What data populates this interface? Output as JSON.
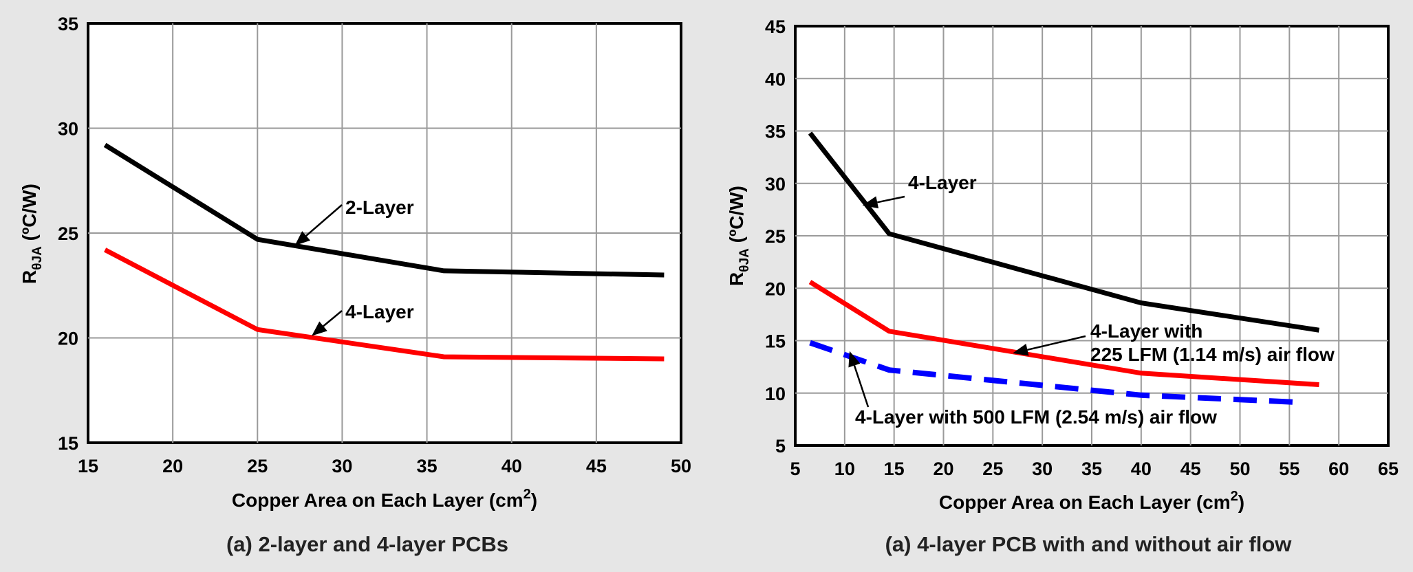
{
  "chart_data": [
    {
      "type": "line",
      "title": "",
      "caption": "(a) 2-layer and 4-layer PCBs",
      "xlabel": "Copper Area on Each Layer (cm",
      "xlabel_sup": "2",
      "xlabel_close": ")",
      "ylabel_main": "R",
      "ylabel_sub": "θJA",
      "ylabel_unit": " (ºC/W)",
      "xlim": [
        15,
        50
      ],
      "ylim": [
        15,
        35
      ],
      "xticks": [
        15,
        20,
        25,
        30,
        35,
        40,
        45,
        50
      ],
      "yticks": [
        15,
        20,
        25,
        30,
        35
      ],
      "grid": true,
      "series": [
        {
          "name": "2-Layer",
          "color": "#000000",
          "dash": "solid",
          "x": [
            16,
            25,
            36,
            49
          ],
          "y": [
            29.2,
            24.7,
            23.2,
            23.0
          ]
        },
        {
          "name": "4-Layer",
          "color": "#ff0000",
          "dash": "solid",
          "x": [
            16,
            25,
            36,
            49
          ],
          "y": [
            24.2,
            20.4,
            19.1,
            19.0
          ]
        }
      ],
      "annotations": [
        {
          "text": "2-Layer",
          "target": [
            27.2,
            24.4
          ]
        },
        {
          "text": "4-Layer",
          "target": [
            28.2,
            20.1
          ]
        }
      ]
    },
    {
      "type": "line",
      "title": "",
      "caption": "(a) 4-layer PCB with and without air flow",
      "xlabel": "Copper Area on Each Layer (cm",
      "xlabel_sup": "2",
      "xlabel_close": ")",
      "ylabel_main": "R",
      "ylabel_sub": "θJA",
      "ylabel_unit": " (ºC/W)",
      "xlim": [
        5,
        65
      ],
      "ylim": [
        5,
        45
      ],
      "xticks": [
        5,
        10,
        15,
        20,
        25,
        30,
        35,
        40,
        45,
        50,
        55,
        60,
        65
      ],
      "yticks": [
        5,
        10,
        15,
        20,
        25,
        30,
        35,
        40,
        45
      ],
      "grid": true,
      "series": [
        {
          "name": "4-Layer",
          "color": "#000000",
          "dash": "solid",
          "x": [
            6.5,
            14.5,
            40,
            58
          ],
          "y": [
            34.8,
            25.2,
            18.6,
            16.0
          ]
        },
        {
          "name": "4-Layer with 225 LFM (1.14 m/s) air flow",
          "color": "#ff0000",
          "dash": "solid",
          "x": [
            6.5,
            14.5,
            40,
            58
          ],
          "y": [
            20.6,
            15.9,
            11.9,
            10.8
          ]
        },
        {
          "name": "4-Layer with 500 LFM (2.54 m/s) air flow",
          "color": "#0000ff",
          "dash": "dashed",
          "x": [
            6.5,
            14.5,
            40,
            56.5
          ],
          "y": [
            14.8,
            12.2,
            9.8,
            9.1
          ]
        }
      ],
      "annotations": [
        {
          "text": "4-Layer",
          "target": [
            11.8,
            27.9
          ]
        },
        {
          "text": "4-Layer with",
          "text2": "225 LFM (1.14 m/s) air flow",
          "target": [
            27,
            13.8
          ]
        },
        {
          "text": "4-Layer with 500 LFM (2.54 m/s) air flow",
          "target": [
            10.5,
            14.0
          ]
        }
      ]
    }
  ]
}
